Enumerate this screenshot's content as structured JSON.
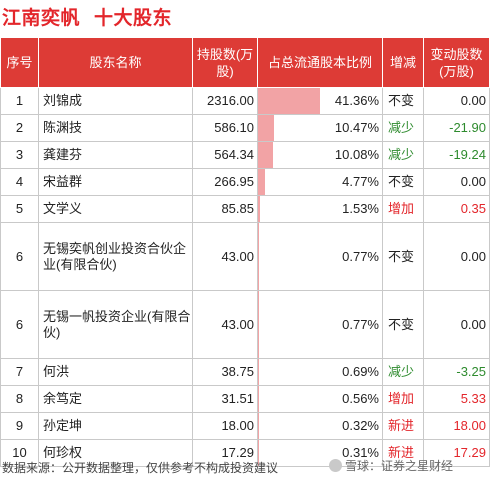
{
  "title": {
    "company": "江南奕帆",
    "subject": "十大股东"
  },
  "headers": {
    "no": "序号",
    "name": "股东名称",
    "shares": "持股数(万股)",
    "ratio": "占总流通股本比例",
    "change_type": "增减",
    "change": "变动股数(万股)"
  },
  "rows": [
    {
      "no": "1",
      "name": "刘锦成",
      "shares": "2316.00",
      "ratio": "41.36%",
      "ratio_value": 41.36,
      "change_type": "不变",
      "change_kind": "neutral",
      "change": "0.00"
    },
    {
      "no": "2",
      "name": "陈渊技",
      "shares": "586.10",
      "ratio": "10.47%",
      "ratio_value": 10.47,
      "change_type": "减少",
      "change_kind": "down",
      "change": "-21.90"
    },
    {
      "no": "3",
      "name": "龚建芬",
      "shares": "564.34",
      "ratio": "10.08%",
      "ratio_value": 10.08,
      "change_type": "减少",
      "change_kind": "down",
      "change": "-19.24"
    },
    {
      "no": "4",
      "name": "宋益群",
      "shares": "266.95",
      "ratio": "4.77%",
      "ratio_value": 4.77,
      "change_type": "不变",
      "change_kind": "neutral",
      "change": "0.00"
    },
    {
      "no": "5",
      "name": "文学义",
      "shares": "85.85",
      "ratio": "1.53%",
      "ratio_value": 1.53,
      "change_type": "增加",
      "change_kind": "up",
      "change": "0.35"
    },
    {
      "no": "6",
      "name": "无锡奕帆创业投资合伙企业(有限合伙)",
      "shares": "43.00",
      "ratio": "0.77%",
      "ratio_value": 0.77,
      "change_type": "不变",
      "change_kind": "neutral",
      "change": "0.00"
    },
    {
      "no": "6",
      "name": "无锡一帆投资企业(有限合伙)",
      "shares": "43.00",
      "ratio": "0.77%",
      "ratio_value": 0.77,
      "change_type": "不变",
      "change_kind": "neutral",
      "change": "0.00"
    },
    {
      "no": "7",
      "name": "何洪",
      "shares": "38.75",
      "ratio": "0.69%",
      "ratio_value": 0.69,
      "change_type": "减少",
      "change_kind": "down",
      "change": "-3.25"
    },
    {
      "no": "8",
      "name": "余笃定",
      "shares": "31.51",
      "ratio": "0.56%",
      "ratio_value": 0.56,
      "change_type": "增加",
      "change_kind": "up",
      "change": "5.33"
    },
    {
      "no": "9",
      "name": "孙定坤",
      "shares": "18.00",
      "ratio": "0.32%",
      "ratio_value": 0.32,
      "change_type": "新进",
      "change_kind": "up",
      "change": "18.00"
    },
    {
      "no": "10",
      "name": "何珍权",
      "shares": "17.29",
      "ratio": "0.31%",
      "ratio_value": 0.31,
      "change_type": "新进",
      "change_kind": "up",
      "change": "17.29"
    }
  ],
  "colors": {
    "accent": "#e3262b",
    "header_bg": "#dd3b36",
    "bar": "#f2a3a5",
    "up": "#e3262b",
    "down": "#2e8b2e",
    "neutral": "#222222"
  },
  "footer": {
    "source": "数据来源：公开数据整理，仅供参考不构成投资建议",
    "brand": "雪球：证券之星财经",
    "brand_icon": "snowball-icon"
  }
}
